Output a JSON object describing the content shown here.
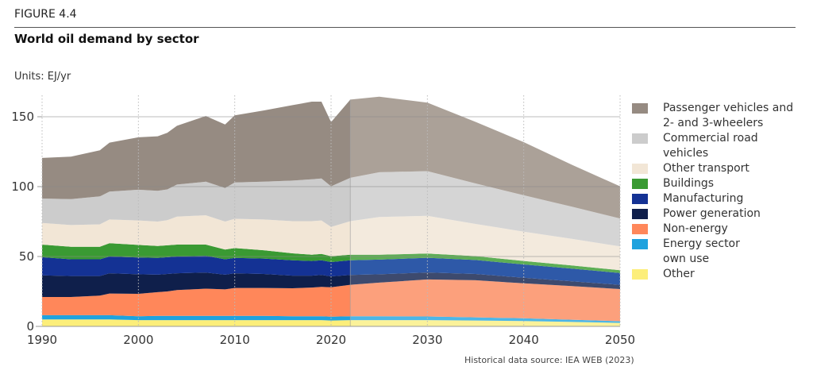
{
  "figure_label": "FIGURE 4.4",
  "title": "World oil demand by sector",
  "units": "Units: EJ/yr",
  "source": "Historical data source: IEA WEB (2023)",
  "chart_data": {
    "type": "area",
    "stacked": true,
    "title": "World oil demand by sector",
    "xlabel": "",
    "ylabel": "EJ/yr",
    "xlim": [
      1990,
      2050
    ],
    "ylim": [
      0,
      165
    ],
    "x_ticks": [
      1990,
      2000,
      2010,
      2020,
      2030,
      2040,
      2050
    ],
    "y_ticks": [
      0,
      50,
      100,
      150
    ],
    "grid": {
      "horizontal": true,
      "vertical_dotted": true
    },
    "projection_start": 2022,
    "legend_position": "right",
    "x": [
      1990,
      1993,
      1996,
      1997,
      2000,
      2002,
      2003,
      2004,
      2007,
      2009,
      2010,
      2013,
      2016,
      2018,
      2019,
      2020,
      2022,
      2025,
      2030,
      2035,
      2040,
      2045,
      2050
    ],
    "series": [
      {
        "name": "Other",
        "color": "#FCEE7A",
        "projection_color": "#FBF29A",
        "values": [
          5,
          5,
          5,
          5,
          4.5,
          4.5,
          4.5,
          4.5,
          4.5,
          4.5,
          4.5,
          4.5,
          4.5,
          4.5,
          4.5,
          4.2,
          4.5,
          4.5,
          4.5,
          4.2,
          3.8,
          3.2,
          2.5
        ]
      },
      {
        "name": "Energy sector own use",
        "color": "#1FA2DE",
        "projection_color": "#4DB6E6",
        "values": [
          3,
          3,
          3,
          3,
          2.8,
          3,
          3,
          3,
          3,
          3,
          3,
          3,
          2.8,
          2.8,
          2.8,
          2.8,
          2.8,
          2.8,
          2.6,
          2.3,
          2,
          1.6,
          1.2
        ]
      },
      {
        "name": "Non-energy",
        "color": "#FF875A",
        "projection_color": "#FCA07C",
        "values": [
          13,
          13,
          14,
          15.5,
          16,
          17,
          17.5,
          18.5,
          19.5,
          19,
          20,
          20,
          20,
          20.5,
          21,
          21,
          22.5,
          24,
          26.5,
          26.5,
          25,
          24,
          23
        ]
      },
      {
        "name": "Power generation",
        "color": "#0F1F4B",
        "projection_color": "#3D4A6E",
        "values": [
          15.5,
          15,
          14,
          14.5,
          14,
          12.5,
          12.5,
          12,
          11.5,
          10.5,
          10.5,
          10,
          9,
          8.5,
          8.5,
          7.8,
          7,
          6,
          5,
          4.5,
          4,
          3.5,
          3
        ]
      },
      {
        "name": "Manufacturing",
        "color": "#143294",
        "projection_color": "#2E59A8",
        "values": [
          13,
          12,
          12,
          12,
          12,
          12,
          12,
          12,
          12,
          11,
          11,
          11,
          11,
          10.5,
          10.5,
          10.2,
          10.5,
          10.5,
          10.5,
          10,
          9.5,
          9,
          8.5
        ]
      },
      {
        "name": "Buildings",
        "color": "#3A9A33",
        "projection_color": "#5DAE55",
        "values": [
          9,
          9,
          9,
          9.5,
          9,
          8.5,
          8.5,
          8.5,
          8,
          7,
          7,
          6,
          5,
          4.5,
          4.5,
          4.2,
          4,
          3.5,
          3,
          2.8,
          2.5,
          2.3,
          2
        ]
      },
      {
        "name": "Other transport",
        "color": "#F2E6D6",
        "projection_color": "#F3EADD",
        "values": [
          15.5,
          15.5,
          16,
          17,
          17.5,
          17.5,
          18,
          20,
          21,
          20,
          21,
          22,
          23,
          24,
          24,
          21,
          24,
          27,
          27,
          23,
          21,
          19,
          17
        ]
      },
      {
        "name": "Commercial road vehicles",
        "color": "#CCCCCC",
        "projection_color": "#D5D5D5",
        "values": [
          17.5,
          18.5,
          20,
          20,
          22,
          22,
          22,
          23,
          24,
          24,
          26,
          27,
          29,
          30,
          30,
          29,
          31,
          32,
          32,
          29,
          26,
          23,
          20
        ]
      },
      {
        "name": "Passenger vehicles and 2- and 3-wheelers",
        "color": "#968B82",
        "projection_color": "#ABA198",
        "values": [
          29,
          30.5,
          33,
          35,
          37.5,
          39,
          40.5,
          42,
          47,
          45.5,
          48,
          51,
          54,
          55.5,
          55,
          46,
          56,
          54,
          49,
          44,
          38,
          30,
          23
        ]
      }
    ]
  },
  "legend": [
    {
      "label": "Passenger vehicles and 2- and 3-wheelers",
      "color": "#968B82"
    },
    {
      "label": "Commercial road vehicles",
      "color": "#CCCCCC"
    },
    {
      "label": "Other transport",
      "color": "#F2E6D6"
    },
    {
      "label": "Buildings",
      "color": "#3A9A33"
    },
    {
      "label": "Manufacturing",
      "color": "#143294"
    },
    {
      "label": "Power generation",
      "color": "#0F1F4B"
    },
    {
      "label": "Non-energy",
      "color": "#FF875A"
    },
    {
      "label": "Energy sector own use",
      "color": "#1FA2DE"
    },
    {
      "label": "Other",
      "color": "#FCEE7A"
    }
  ]
}
